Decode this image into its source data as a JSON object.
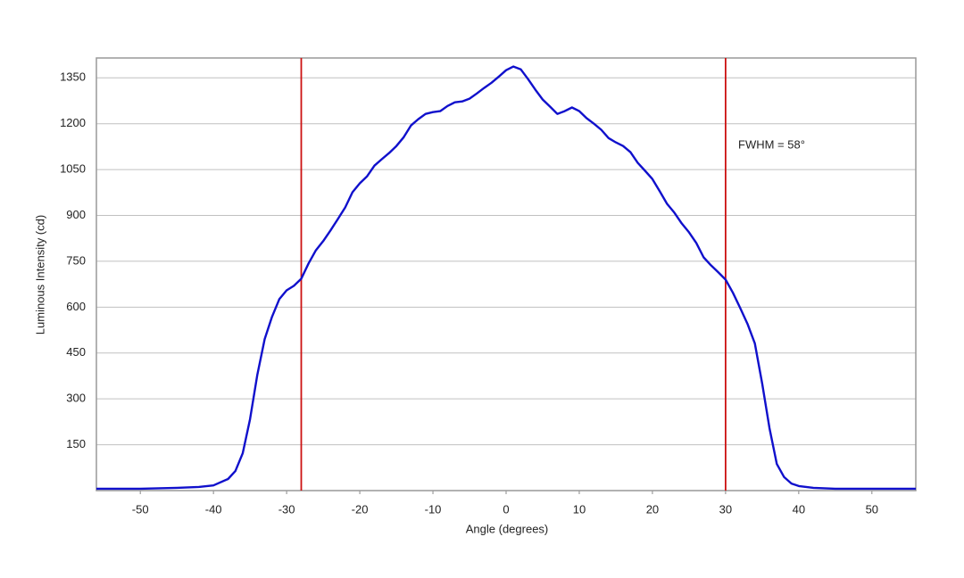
{
  "chart_data": {
    "type": "line",
    "x_label": "Angle (degrees)",
    "y_label": "Luminous Intensity (cd)",
    "annotation": "FWHM = 58°",
    "xlim": [
      -56,
      56
    ],
    "xticks": [
      -50,
      -40,
      -30,
      -20,
      -10,
      0,
      10,
      20,
      30,
      40,
      50
    ],
    "ylim": [
      0,
      1415
    ],
    "yticks": [
      150,
      300,
      450,
      600,
      750,
      900,
      1050,
      1200,
      1350
    ],
    "grid": true,
    "vlines": [
      -28,
      30
    ],
    "vline_color": "#cc1111",
    "series": [
      {
        "color": "#1010cc",
        "x": [
          -56,
          -50,
          -45,
          -42,
          -40,
          -38,
          -37,
          -36,
          -35,
          -34,
          -33,
          -32,
          -31,
          -30,
          -29,
          -28,
          -27,
          -26,
          -25,
          -24,
          -23,
          -22,
          -21,
          -20,
          -19,
          -18,
          -17,
          -16,
          -15,
          -14,
          -13,
          -12,
          -11,
          -10,
          -9,
          -8,
          -7,
          -6,
          -5,
          -4,
          -3,
          -2,
          -1,
          0,
          1,
          2,
          3,
          4,
          5,
          6,
          7,
          8,
          9,
          10,
          11,
          12,
          13,
          14,
          15,
          16,
          17,
          18,
          19,
          20,
          21,
          22,
          23,
          24,
          25,
          26,
          27,
          28,
          29,
          30,
          31,
          32,
          33,
          34,
          35,
          36,
          37,
          38,
          39,
          40,
          42,
          45,
          50,
          56
        ],
        "values": [
          6,
          6,
          9,
          12,
          17,
          38,
          64,
          122,
          233,
          379,
          495,
          568,
          626,
          655,
          670,
          693,
          743,
          786,
          816,
          851,
          888,
          926,
          976,
          1005,
          1028,
          1063,
          1084,
          1104,
          1127,
          1156,
          1194,
          1215,
          1232,
          1238,
          1241,
          1258,
          1270,
          1273,
          1282,
          1299,
          1317,
          1334,
          1354,
          1375,
          1387,
          1378,
          1346,
          1311,
          1279,
          1256,
          1232,
          1241,
          1253,
          1241,
          1218,
          1200,
          1180,
          1153,
          1139,
          1127,
          1107,
          1072,
          1046,
          1019,
          979,
          938,
          909,
          874,
          845,
          810,
          763,
          737,
          714,
          690,
          647,
          597,
          545,
          481,
          350,
          204,
          87,
          44,
          23,
          15,
          9,
          6,
          6,
          6
        ]
      }
    ]
  }
}
